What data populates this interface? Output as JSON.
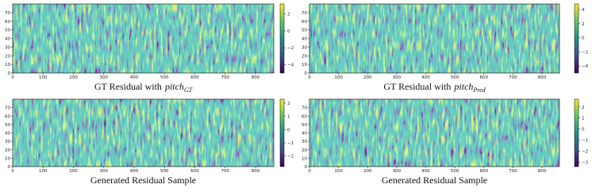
{
  "chart_data": [
    {
      "type": "heatmap",
      "caption": "GT Residual with",
      "caption_math": "pitch",
      "caption_sub": "GT",
      "xlim": [
        0,
        860
      ],
      "xticks": [
        0,
        100,
        200,
        300,
        400,
        500,
        600,
        700,
        800
      ],
      "ylim": [
        0,
        80
      ],
      "yticks": [
        0,
        10,
        20,
        30,
        40,
        50,
        60,
        70
      ],
      "clim": [
        -5,
        3.2
      ],
      "cticks": [
        2,
        0,
        {
          "value": -2,
          "label": "−2"
        },
        {
          "value": -4,
          "label": "−4"
        }
      ],
      "colormap": "viridis"
    },
    {
      "type": "heatmap",
      "caption": "GT Residual with",
      "caption_math": "pitch",
      "caption_sub": "Pred",
      "xlim": [
        0,
        860
      ],
      "xticks": [
        0,
        100,
        200,
        300,
        400,
        500,
        600,
        700,
        800
      ],
      "ylim": [
        0,
        80
      ],
      "yticks": [
        0,
        10,
        20,
        30,
        40,
        50,
        60,
        70
      ],
      "clim": [
        -5,
        4.8
      ],
      "cticks": [
        4,
        2,
        0,
        {
          "value": -2,
          "label": "−2"
        },
        {
          "value": -4,
          "label": "−4"
        }
      ],
      "colormap": "viridis"
    },
    {
      "type": "heatmap",
      "caption": "Generated Residual Sample",
      "xlim": [
        0,
        860
      ],
      "xticks": [
        0,
        100,
        200,
        300,
        400,
        500,
        600,
        700,
        800
      ],
      "ylim": [
        0,
        80
      ],
      "yticks": [
        0,
        10,
        20,
        30,
        40,
        50,
        60,
        70
      ],
      "clim": [
        -2.8,
        2.3
      ],
      "cticks": [
        2,
        1,
        0,
        {
          "value": -1,
          "label": "−1"
        },
        {
          "value": -2,
          "label": "−2"
        }
      ],
      "colormap": "viridis"
    },
    {
      "type": "heatmap",
      "caption": "Generated Residual Sample",
      "xlim": [
        0,
        860
      ],
      "xticks": [
        0,
        100,
        200,
        300,
        400,
        500,
        600,
        700,
        800
      ],
      "ylim": [
        0,
        80
      ],
      "yticks": [
        0,
        10,
        20,
        30,
        40,
        50,
        60,
        70
      ],
      "clim": [
        -3.4,
        2.7
      ],
      "cticks": [
        2,
        1,
        0,
        {
          "value": -1,
          "label": "−1"
        },
        {
          "value": -2,
          "label": "−2"
        },
        {
          "value": -3,
          "label": "−3"
        }
      ],
      "colormap": "viridis"
    }
  ]
}
